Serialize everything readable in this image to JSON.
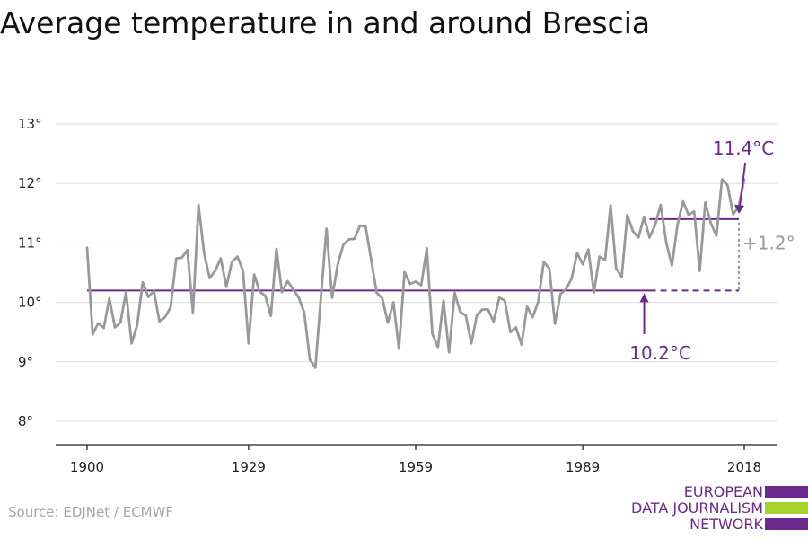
{
  "title": "Average temperature in and around Brescia",
  "source": "Source: EDJNet / ECMWF",
  "logo": {
    "line1": "EUROPEAN",
    "line2": "DATA JOURNALISM",
    "line3": "NETWORK",
    "purple": "#6b2a8c",
    "green": "#a6d22e"
  },
  "chart_data": {
    "type": "line",
    "title": "Average temperature in and around Brescia",
    "xlabel": "",
    "ylabel": "",
    "x_ticks": [
      1900,
      1929,
      1959,
      1989,
      2018
    ],
    "y_ticks": [
      "8°",
      "9°",
      "10°",
      "11°",
      "12°",
      "13°"
    ],
    "y_tick_values": [
      8,
      9,
      10,
      11,
      12,
      13
    ],
    "xlim": [
      1900,
      2018
    ],
    "ylim": [
      8,
      13
    ],
    "grid": true,
    "colors": {
      "series": "#999999",
      "reference": "#6b2a8c",
      "delta": "#999999"
    },
    "series": [
      {
        "x": [
          1900,
          1901,
          1902,
          1903,
          1904,
          1905,
          1906,
          1907,
          1908,
          1909,
          1910,
          1911,
          1912,
          1913,
          1914,
          1915,
          1916,
          1917,
          1918,
          1919,
          1920,
          1921,
          1922,
          1923,
          1924,
          1925,
          1926,
          1927,
          1928,
          1929,
          1930,
          1931,
          1932,
          1933,
          1934,
          1935,
          1936,
          1937,
          1938,
          1939,
          1940,
          1941,
          1942,
          1943,
          1944,
          1945,
          1946,
          1947,
          1948,
          1949,
          1950,
          1951,
          1952,
          1953,
          1954,
          1955,
          1956,
          1957,
          1958,
          1959,
          1960,
          1961,
          1962,
          1963,
          1964,
          1965,
          1966,
          1967,
          1968,
          1969,
          1970,
          1971,
          1972,
          1973,
          1974,
          1975,
          1976,
          1977,
          1978,
          1979,
          1980,
          1981,
          1982,
          1983,
          1984,
          1985,
          1986,
          1987,
          1988,
          1989,
          1990,
          1991,
          1992,
          1993,
          1994,
          1995,
          1996,
          1997,
          1998,
          1999,
          2000,
          2001,
          2002,
          2003,
          2004,
          2005,
          2006,
          2007,
          2008,
          2009,
          2010,
          2011,
          2012,
          2013,
          2014,
          2015,
          2016,
          2017,
          2018
        ],
        "values": [
          10.92,
          9.46,
          9.65,
          9.57,
          10.07,
          9.58,
          9.66,
          10.18,
          9.31,
          9.62,
          10.34,
          10.09,
          10.19,
          9.68,
          9.75,
          9.92,
          10.74,
          10.75,
          10.88,
          9.83,
          11.64,
          10.83,
          10.41,
          10.53,
          10.74,
          10.26,
          10.68,
          10.77,
          10.53,
          9.31,
          10.47,
          10.18,
          10.11,
          9.77,
          10.9,
          10.17,
          10.36,
          10.22,
          10.08,
          9.83,
          9.04,
          8.9,
          10.1,
          11.24,
          10.08,
          10.64,
          10.97,
          11.06,
          11.07,
          11.29,
          11.28,
          10.72,
          10.16,
          10.07,
          9.66,
          10.0,
          9.22,
          10.51,
          10.31,
          10.35,
          10.29,
          10.91,
          9.47,
          9.25,
          10.03,
          9.16,
          10.16,
          9.84,
          9.78,
          9.31,
          9.79,
          9.88,
          9.88,
          9.68,
          10.08,
          10.03,
          9.5,
          9.58,
          9.29,
          9.93,
          9.75,
          10.01,
          10.68,
          10.57,
          9.64,
          10.14,
          10.22,
          10.4,
          10.83,
          10.64,
          10.89,
          10.16,
          10.77,
          10.71,
          11.63,
          10.57,
          10.43,
          11.47,
          11.2,
          11.09,
          11.43,
          11.09,
          11.3,
          11.64,
          11.0,
          10.62,
          11.3,
          11.7,
          11.47,
          11.53,
          10.53,
          11.68,
          11.33,
          11.12,
          12.07,
          11.97,
          11.48,
          11.61,
          12.07
        ]
      }
    ],
    "reference_lines": [
      {
        "label": "10.2°C",
        "value": 10.2,
        "x_start": 1900,
        "x_end": 2018
      },
      {
        "label": "11.4°C",
        "value": 11.4,
        "x_start": 2001,
        "x_end": 2018
      }
    ],
    "difference_label": "+1.2°"
  }
}
